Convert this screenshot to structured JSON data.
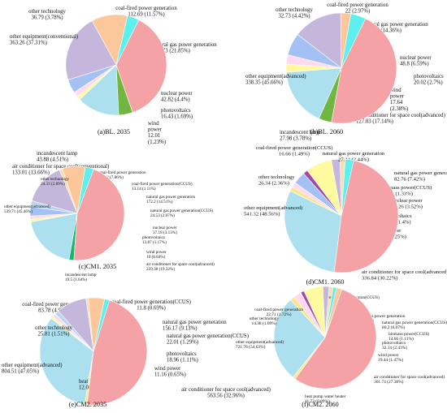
{
  "figure_caption": "",
  "chart_data": [
    {
      "type": "pie",
      "title": "(a)BL. 2035",
      "slices": [
        {
          "category": "coal-fired power generation",
          "name": "coal-fired power generation",
          "value": 112.69,
          "percent": "11.57%",
          "color": "#fcc79a",
          "label_lines": [
            "coal-fired power generation",
            "112.69 (11.57%)"
          ]
        },
        {
          "category": "natural gas power generation",
          "name": "natural gas power generation",
          "value": 212.73,
          "percent": "21.85%",
          "color": "#c5b7db",
          "label_lines": [
            "natural gas power generation",
            "212.73 (21.85%)"
          ]
        },
        {
          "category": "nuclear power",
          "name": "nuclear power",
          "value": 42.82,
          "percent": "4.4%",
          "color": "#a3c1f3",
          "label_lines": [
            "nuclear power",
            "42.82 (4.4%)"
          ]
        },
        {
          "category": "photovoltaics",
          "name": "photovoltaics",
          "value": 16.43,
          "percent": "1.69%",
          "color": "#ffd9f0",
          "label_lines": [
            "photovoltaics",
            "16.43 (1.69%)"
          ]
        },
        {
          "category": "wind power",
          "name": "wind power",
          "value": 12.01,
          "percent": "1.23%",
          "color": "#fffaa0",
          "label_lines": [
            "wind",
            "power",
            "12.01",
            "(1.23%)"
          ]
        },
        {
          "category": "air conditioner",
          "name": "air conditioner for space cool(conventional)",
          "value": 133.01,
          "percent": "13.66%",
          "color": "#ade0ee",
          "label_lines": [
            "air conditioner for space cool(conventional)",
            "133.01 (13.66%)"
          ]
        },
        {
          "category": "incandescent lamp",
          "name": "incandescent lamp",
          "value": 43.88,
          "percent": "4.51%",
          "color": "#70b742",
          "label_lines": [
            "incandescent lamp",
            "43.88 (4.51%)"
          ]
        },
        {
          "category": "other equipment",
          "name": "other equipment(conventional)",
          "value": 363.26,
          "percent": "37.31%",
          "color": "#f4a2a6",
          "label_lines": [
            "other equipment(conventional)",
            "363.26 (37.31%)"
          ]
        },
        {
          "category": "other technology",
          "name": "other technology",
          "value": 36.79,
          "percent": "3.78%",
          "color": "#5ef0ee",
          "label_lines": [
            "other technology",
            "36.79 (3.78%)"
          ]
        }
      ]
    },
    {
      "type": "pie",
      "title": "(b)BL. 2060",
      "slices": [
        {
          "category": "coal-fired power generation",
          "name": "coal-fired power generation",
          "value": 22,
          "percent": "2.97%",
          "color": "#fcc79a",
          "label_lines": [
            "coal-fired power generation",
            "22 (2.97%)"
          ]
        },
        {
          "category": "natural gas power generation",
          "name": "natural gas power generation",
          "value": 106.41,
          "percent": "14.36%",
          "color": "#c5b7db",
          "label_lines": [
            "natural gas power generation",
            "106.41 (14.36%)"
          ]
        },
        {
          "category": "nuclear power",
          "name": "nuclear power",
          "value": 48.8,
          "percent": "6.59%",
          "color": "#a3c1f3",
          "label_lines": [
            "nuclear power",
            "48.8 (6.59%)"
          ]
        },
        {
          "category": "photovoltaics",
          "name": "photovoltaics",
          "value": 20.02,
          "percent": "2.7%",
          "color": "#ffd9f0",
          "label_lines": [
            "photovoltaics",
            "20.02 (2.7%)"
          ]
        },
        {
          "category": "wind power",
          "name": "wind power",
          "value": 17.64,
          "percent": "2.38%",
          "color": "#fffaa0",
          "label_lines": [
            "wind",
            "power",
            "17.64",
            "(2.38%)"
          ]
        },
        {
          "category": "air conditioner",
          "name": "air conditioner for space cool(advanced)",
          "value": 127.03,
          "percent": "17.14%",
          "color": "#ade0ee",
          "label_lines": [
            "air conditioner for space cool(advanced)",
            "127.03 (17.14%)"
          ]
        },
        {
          "category": "incandescent lamp",
          "name": "incandescent lamp",
          "value": 27.98,
          "percent": "3.78%",
          "color": "#70b742",
          "label_lines": [
            "incandescent lamp",
            "27.98 (3.78%)"
          ]
        },
        {
          "category": "other equipment",
          "name": "other equipment(advanced)",
          "value": 338.35,
          "percent": "45.66%",
          "color": "#f4a2a6",
          "label_lines": [
            "other equipment(advanced)",
            "338.35 (45.66%)"
          ]
        },
        {
          "category": "other technology",
          "name": "other technology",
          "value": 32.73,
          "percent": "4.42%",
          "color": "#5ef0ee",
          "label_lines": [
            "other technology",
            "32.73 (4.42%)"
          ]
        }
      ]
    },
    {
      "type": "pie",
      "title": "(c)CM1. 2035",
      "slices": [
        {
          "category": "coal-fired power generation",
          "name": "coal-fired power generation",
          "value": 93.32,
          "percent": "7.86%",
          "color": "#fcc79a",
          "label_lines": [
            "coal-fired power generation",
            "93.32 (7.86%)"
          ]
        },
        {
          "category": "coal-fired power generation(CCUS)",
          "name": "coal-fired power generation(CCUS)",
          "value": 13.14,
          "percent": "1.11%",
          "color": "#f5deb0",
          "label_lines": [
            "coal-fired power generation(CCUS)",
            "13.14 (1.11%)"
          ]
        },
        {
          "category": "natural gas power generation",
          "name": "natural gas power generation",
          "value": 172.2,
          "percent": "14.51%",
          "color": "#c5b7db",
          "label_lines": [
            "natural gas power generation",
            "172.2 (14.51%)"
          ]
        },
        {
          "category": "natural gas power generation(CCUS)",
          "name": "natural gas power generation(CCUS)",
          "value": 24.53,
          "percent": "2.07%",
          "color": "#b9d6ea",
          "label_lines": [
            "natural gas power generation(CCUS)",
            "24.53 (2.07%)"
          ]
        },
        {
          "category": "nuclear power",
          "name": "nuclear power",
          "value": 37.18,
          "percent": "3.13%",
          "color": "#a3c1f3",
          "label_lines": [
            "nuclear power",
            "37.18 (3.13%)"
          ]
        },
        {
          "category": "photovoltaics",
          "name": "photovoltaics",
          "value": 13.87,
          "percent": "1.17%",
          "color": "#ffd9f0",
          "label_lines": [
            "photovoltaics",
            "13.87 (1.17%)"
          ]
        },
        {
          "category": "wind power",
          "name": "wind power",
          "value": 10,
          "percent": "0.84%",
          "color": "#fffaa0",
          "label_lines": [
            "wind power",
            "10 (0.84%)"
          ]
        },
        {
          "category": "air conditioner",
          "name": "air conditioner for space cool(advanced)",
          "value": 229.38,
          "percent": "19.32%",
          "color": "#ade0ee",
          "label_lines": [
            "air conditioner for space cool(advanced)",
            "229.38 (19.32%)"
          ]
        },
        {
          "category": "incandescent lamp",
          "name": "incandescent lamp",
          "value": 19.5,
          "percent": "1.64%",
          "color": "#19b56c",
          "label_lines": [
            "incandescent lamp",
            "19.5 (1.64%)"
          ]
        },
        {
          "category": "other equipment",
          "name": "other equipment(advanced)",
          "value": 539.71,
          "percent": "45.46%",
          "color": "#f4a2a6",
          "label_lines": [
            "other equipment(advanced)",
            "539.71 (45.46%)"
          ]
        },
        {
          "category": "other technology",
          "name": "other technology",
          "value": 34.33,
          "percent": "2.89%",
          "color": "#5ef0ee",
          "label_lines": [
            "other technology",
            "34.33 (2.89%)"
          ]
        }
      ]
    },
    {
      "type": "pie",
      "title": "(d)CM1. 2060",
      "slices": [
        {
          "category": "coal-fired power generation(CCUS)",
          "name": "coal-fired power generation(CCUS)",
          "value": 16.66,
          "percent": "1.49%",
          "color": "#f5deb0",
          "label_lines": [
            "coal-fired power generation(CCUS)",
            "16.66 (1.49%)"
          ]
        },
        {
          "category": "natural gas power generation",
          "name": "natural gas power generation",
          "value": 27.24,
          "percent": "2.44%",
          "color": "#c5b7db",
          "label_lines": [
            "natural gas power generation",
            "27.24 (2.44%)"
          ]
        },
        {
          "category": "natural gas power generation(CCUS)",
          "name": "natural gas power generation(CCUS)",
          "value": 82.76,
          "percent": "7.42%",
          "color": "#fffaa0",
          "label_lines": [
            "natural gas power generation(CCUS)",
            "82.76 (7.42%)"
          ]
        },
        {
          "category": "biomass power",
          "name": "biomass power(CCUS)",
          "value": 14.83,
          "percent": "1.33%",
          "color": "#a349a4",
          "label_lines": [
            "biomass power(CCUS)",
            "14.83 (1.33%)"
          ]
        },
        {
          "category": "nuclear power",
          "name": "nuclear power",
          "value": 39.26,
          "percent": "3.52%",
          "color": "#a3c1f3",
          "label_lines": [
            "nuclear power",
            "39.26 (3.52%)"
          ]
        },
        {
          "category": "photovoltaics",
          "name": "photovoltaics",
          "value": 15.58,
          "percent": "1.4%",
          "color": "#ffd9f0",
          "label_lines": [
            "photovoltaics",
            "15.58 (1.4%)"
          ]
        },
        {
          "category": "wind power",
          "name": "wind power",
          "value": 13.94,
          "percent": "1.25%",
          "color": "#ffe58a",
          "label_lines": [
            "wind power",
            "13.94 (1.25%)"
          ]
        },
        {
          "category": "air conditioner",
          "name": "air conditioner for space cool(advanced)",
          "value": 336.84,
          "percent": "30.22%",
          "color": "#ade0ee",
          "label_lines": [
            "air conditioner for space cool(advanced)",
            "336.84 (30.22%)"
          ]
        },
        {
          "category": "other equipment",
          "name": "other equipment(advanced)",
          "value": 541.32,
          "percent": "48.56%",
          "color": "#f4a2a6",
          "label_lines": [
            "other equipment(advanced)",
            "541.32 (48.56%)"
          ]
        },
        {
          "category": "other technology",
          "name": "other technology",
          "value": 26.34,
          "percent": "2.36%",
          "color": "#5ef0ee",
          "label_lines": [
            "other technology",
            "26.34 (2.36%)"
          ]
        }
      ]
    },
    {
      "type": "pie",
      "title": "(e)CM2. 2035",
      "slices": [
        {
          "category": "coal-fired power generation",
          "name": "coal-fired power generation",
          "value": 83.78,
          "percent": "4.9%",
          "color": "#fcc79a",
          "label_lines": [
            "coal-fired power generation",
            "83.78 (4.9%)"
          ]
        },
        {
          "category": "coal-fired power generation(CCUS)",
          "name": "coal-fired power generation(CCUS)",
          "value": 11.8,
          "percent": "0.69%",
          "color": "#f5deb0",
          "label_lines": [
            "coal-fired power generation(CCUS)",
            "11.8 (0.69%)"
          ]
        },
        {
          "category": "natural gas power generation",
          "name": "natural gas power generation",
          "value": 156.17,
          "percent": "9.13%",
          "color": "#c5b7db",
          "label_lines": [
            "natural gas power generation",
            "156.17 (9.13%)"
          ]
        },
        {
          "category": "natural gas power generation(CCUS)",
          "name": "natural gas power generation(CCUS)",
          "value": 22.01,
          "percent": "1.29%",
          "color": "#b9d6ea",
          "label_lines": [
            "natural gas power generation(CCUS)",
            "22.01 (1.29%)"
          ]
        },
        {
          "category": "photovoltaics",
          "name": "photovoltaics",
          "value": 18.96,
          "percent": "1.11%",
          "color": "#ffd9f0",
          "label_lines": [
            "photovoltaics",
            "18.96 (1.11%)"
          ]
        },
        {
          "category": "wind power",
          "name": "wind power",
          "value": 11.16,
          "percent": "0.65%",
          "color": "#fffaa0",
          "label_lines": [
            "wind power",
            "11.16 (0.65%)"
          ]
        },
        {
          "category": "air conditioner",
          "name": "air conditioner for space cool(advanced)",
          "value": 563.56,
          "percent": "32.96%",
          "color": "#ade0ee",
          "label_lines": [
            "air conditioner for space cool(advanced)",
            "563.56 (32.96%)"
          ]
        },
        {
          "category": "heat pump water heater",
          "name": "heat pump water heater",
          "value": 12.08,
          "percent": "0.71%",
          "color": "#f7e98a",
          "label_lines": [
            "heat pump water heater",
            "12.08 (0.71%)"
          ]
        },
        {
          "category": "other equipment",
          "name": "other equipment(advanced)",
          "value": 804.51,
          "percent": "47.05%",
          "color": "#f4a2a6",
          "label_lines": [
            "other equipment(advanced)",
            "804.51 (47.05%)"
          ]
        },
        {
          "category": "other technology",
          "name": "other technology",
          "value": 25.81,
          "percent": "1.51%",
          "color": "#5ef0ee",
          "label_lines": [
            "other technology",
            "25.81 (1.51%)"
          ]
        }
      ]
    },
    {
      "type": "pie",
      "title": "(f)CM2. 2060",
      "slices": [
        {
          "category": "coal-fired power generation(CCUS)",
          "name": "coal-fired power generation(CCUS)",
          "value": 16.1,
          "percent": "1.21%",
          "color": "#f5deb0",
          "label_lines": [
            "coal-fired power generation(CCUS)",
            "16.1 (1.21%)"
          ]
        },
        {
          "category": "natural gas power generation",
          "name": "natural gas power generation",
          "value": 26.38,
          "percent": "2%",
          "color": "#c5b7db",
          "label_lines": [
            "natural gas power generation",
            "26.38 (2%)"
          ]
        },
        {
          "category": "natural gas power generation(CCUS)",
          "name": "natural gas power generation(CCUS)",
          "value": 80.2,
          "percent": "6.07%",
          "color": "#fffaa0",
          "label_lines": [
            "natural gas power generation(CCUS)",
            "80.2 (6.07%)"
          ]
        },
        {
          "category": "biomass power",
          "name": "biomass power(CCUS)",
          "value": 14.66,
          "percent": "1.11%",
          "color": "#a349a4",
          "label_lines": [
            "biomass power(CCUS)",
            "14.66 (1.11%)"
          ]
        },
        {
          "category": "photovoltaics",
          "name": "photovoltaics",
          "value": 32.14,
          "percent": "2.43%",
          "color": "#ffd9f0",
          "label_lines": [
            "photovoltaics",
            "32.14 (2.43%)"
          ]
        },
        {
          "category": "wind power",
          "name": "wind power",
          "value": 19.44,
          "percent": "1.47%",
          "color": "#ffe58a",
          "label_lines": [
            "wind power",
            "19.44 (1.47%)"
          ]
        },
        {
          "category": "air conditioner",
          "name": "air conditioner for space cool(advanced)",
          "value": 361.74,
          "percent": "27.38%",
          "color": "#ade0ee",
          "label_lines": [
            "air conditioner for space cool(advanced)",
            "361.74 (27.38%)"
          ]
        },
        {
          "category": "heat pump water heater",
          "name": "heat pump water heater",
          "value": 11.73,
          "percent": "0.89%",
          "color": "#f7e98a",
          "label_lines": [
            "heat pump water heater",
            "11.73 (0.89%)"
          ]
        },
        {
          "category": "other equipment",
          "name": "other equipment(advanced)",
          "value": 721.76,
          "percent": "54.63%",
          "color": "#f4a2a6",
          "label_lines": [
            "other equipment(advanced)",
            "721.76 (54.63%)"
          ]
        },
        {
          "category": "coal-fired power generation",
          "name": "coal-fired power generation",
          "value": 22.71,
          "percent": "1.72%",
          "color": "#fcc79a",
          "label_lines": [
            "coal-fired power generation",
            "22.71 (1.72%)"
          ]
        },
        {
          "category": "other technology",
          "name": "other technology",
          "value": 14.38,
          "percent": "1.09%",
          "color": "#5ef0ee",
          "label_lines": [
            "other technology",
            "14.38 (1.09%)"
          ]
        }
      ]
    }
  ]
}
